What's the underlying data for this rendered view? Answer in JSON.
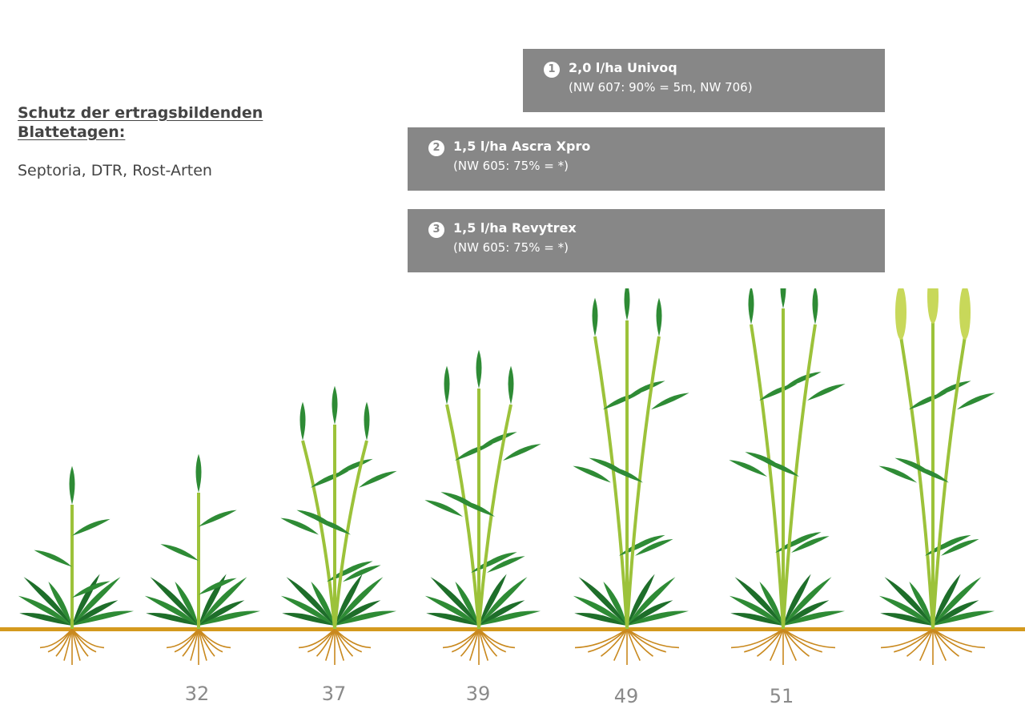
{
  "heading_lines": [
    "Schutz der  ertragsbildenden",
    "Blattetagen:"
  ],
  "subtext": "Septoria, DTR, Rost-Arten",
  "treatments": [
    {
      "number": "1",
      "line1": "2,0 l/ha Univoq",
      "line2": "(NW 607: 90% = 5m, NW 706)"
    },
    {
      "number": "2",
      "line1": "1,5 l/ha Ascra Xpro",
      "line2": "(NW 605: 75% = *)"
    },
    {
      "number": "3",
      "line1": "1,5 l/ha Revytrex",
      "line2": "(NW 605: 75% = *)"
    }
  ],
  "stages": [
    "32",
    "37",
    "39",
    "49",
    "51"
  ],
  "colors": {
    "box": "#878787",
    "leaf": "#2e8b35",
    "leaf_dark": "#1e6e2a",
    "stem": "#9cc23a",
    "ear": "#c8d85a",
    "soil": "#d49a1e",
    "root": "#c9891e"
  }
}
